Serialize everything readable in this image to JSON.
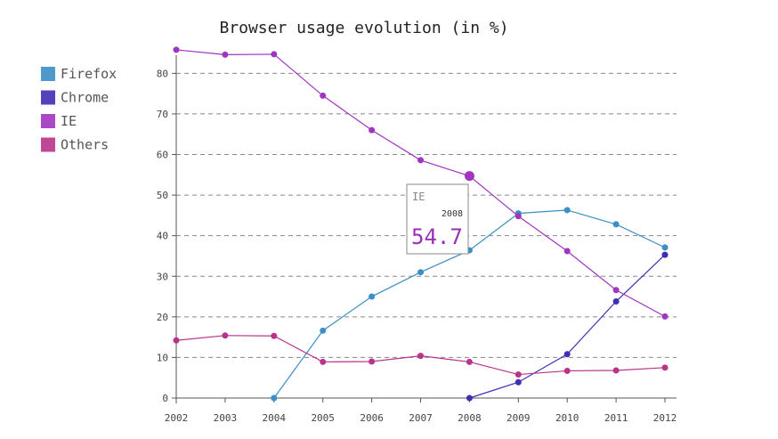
{
  "chart_data": {
    "type": "line",
    "title": "Browser usage evolution (in %)",
    "xlabel": "",
    "ylabel": "",
    "categories": [
      "2002",
      "2003",
      "2004",
      "2005",
      "2006",
      "2007",
      "2008",
      "2009",
      "2010",
      "2011",
      "2012"
    ],
    "ylim": [
      0,
      86
    ],
    "yticks": [
      "0",
      "10",
      "20",
      "30",
      "40",
      "50",
      "60",
      "70",
      "80"
    ],
    "grid": true,
    "legend_position": "top-left",
    "series": [
      {
        "name": "Firefox",
        "color": "#3a8fc4",
        "values": [
          null,
          null,
          0,
          16.6,
          25,
          31,
          36.4,
          45.5,
          46.3,
          42.8,
          37.1
        ]
      },
      {
        "name": "Chrome",
        "color": "#3f2fb5",
        "values": [
          null,
          null,
          null,
          null,
          null,
          null,
          0,
          3.9,
          10.8,
          23.8,
          35.3
        ]
      },
      {
        "name": "IE",
        "color": "#a035c0",
        "values": [
          85.8,
          84.6,
          84.7,
          74.5,
          66,
          58.6,
          54.7,
          44.8,
          36.2,
          26.6,
          20.1
        ]
      },
      {
        "name": "Others",
        "color": "#b8338a",
        "values": [
          14.2,
          15.4,
          15.3,
          8.9,
          9,
          10.4,
          8.9,
          5.8,
          6.7,
          6.8,
          7.5
        ]
      }
    ],
    "tooltip": {
      "series": "IE",
      "x": "2008",
      "value": "54.7",
      "color": "#9a2eb8"
    }
  }
}
